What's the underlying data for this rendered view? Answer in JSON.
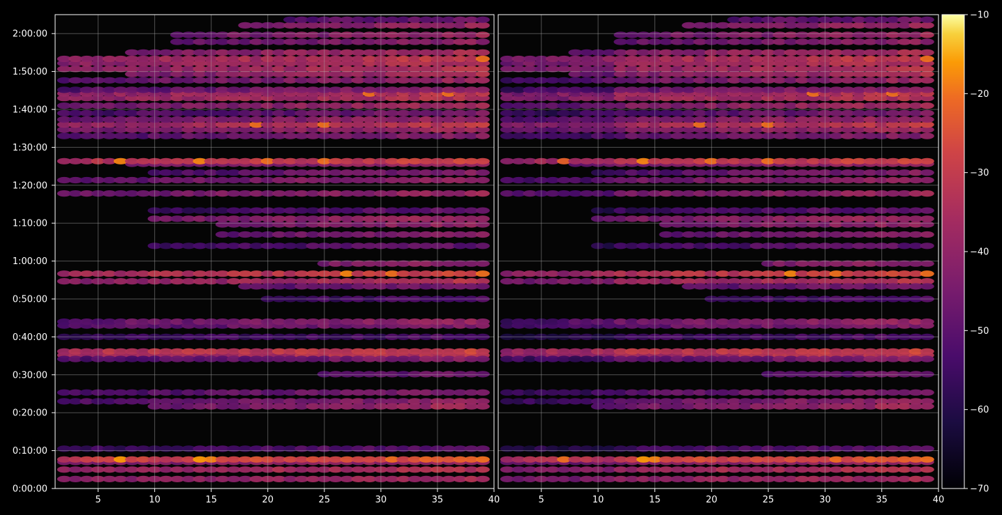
{
  "chart_data": {
    "type": "heatmap",
    "title": "",
    "background": "#000000",
    "colormap": "inferno",
    "grid": true,
    "panels": [
      {
        "name": "",
        "xlim": [
          1.2,
          40
        ],
        "xticks": [
          "5",
          "10",
          "15",
          "20",
          "25",
          "30",
          "35",
          "40"
        ],
        "ylim": [
          0,
          7500
        ],
        "yticks": [
          "0:00:00",
          "0:10:00",
          "0:20:00",
          "0:30:00",
          "0:40:00",
          "0:50:00",
          "1:00:00",
          "1:10:00",
          "1:20:00",
          "1:30:00",
          "1:40:00",
          "1:50:00",
          "2:00:00"
        ]
      },
      {
        "name": "",
        "xlim": [
          1.2,
          40
        ],
        "xticks": [
          "5",
          "10",
          "15",
          "20",
          "25",
          "30",
          "35",
          "40"
        ],
        "ylim": [
          0,
          7500
        ],
        "yticks": []
      }
    ],
    "colorbar": {
      "min": -70,
      "max": -10,
      "ticks": [
        "−10",
        "−20",
        "−30",
        "−40",
        "−50",
        "−60",
        "−70"
      ],
      "tick_values": [
        -10,
        -20,
        -30,
        -40,
        -50,
        -60,
        -70
      ]
    },
    "x_columns": [
      2,
      3,
      4,
      5,
      6,
      7,
      8,
      9,
      10,
      11,
      12,
      13,
      14,
      15,
      16,
      17,
      18,
      19,
      20,
      21,
      22,
      23,
      24,
      25,
      26,
      27,
      28,
      29,
      30,
      31,
      32,
      33,
      34,
      35,
      36,
      37,
      38,
      39
    ],
    "bands": [
      {
        "t": 150,
        "level": -42,
        "trend": 6,
        "start": 2
      },
      {
        "t": 300,
        "level": -40,
        "trend": 8,
        "start": 2
      },
      {
        "t": 420,
        "level": -44,
        "trend": 6,
        "start": 2
      },
      {
        "t": 460,
        "level": -30,
        "trend": 6,
        "start": 2
      },
      {
        "t": 630,
        "level": -56,
        "trend": 6,
        "start": 2
      },
      {
        "t": 1380,
        "level": -52,
        "trend": 12,
        "start": 2
      },
      {
        "t": 1520,
        "level": -54,
        "trend": 12,
        "start": 2
      },
      {
        "t": 1300,
        "level": -50,
        "trend": 14,
        "start": 10
      },
      {
        "t": 2110,
        "level": -38,
        "trend": 6,
        "start": 2
      },
      {
        "t": 2170,
        "level": -34,
        "trend": 6,
        "start": 2
      },
      {
        "t": 2050,
        "level": -52,
        "trend": 10,
        "start": 2
      },
      {
        "t": 1810,
        "level": -58,
        "trend": 12,
        "start": 25
      },
      {
        "t": 2400,
        "level": -58,
        "trend": 6,
        "start": 2
      },
      {
        "t": 2580,
        "level": -52,
        "trend": 10,
        "start": 2
      },
      {
        "t": 2640,
        "level": -50,
        "trend": 12,
        "start": 2
      },
      {
        "t": 3280,
        "level": -42,
        "trend": 10,
        "start": 2
      },
      {
        "t": 3400,
        "level": -36,
        "trend": 8,
        "start": 2
      },
      {
        "t": 3200,
        "level": -56,
        "trend": 12,
        "start": 18
      },
      {
        "t": 3000,
        "level": -60,
        "trend": 8,
        "start": 20
      },
      {
        "t": 3560,
        "level": -52,
        "trend": 12,
        "start": 25
      },
      {
        "t": 3840,
        "level": -58,
        "trend": 10,
        "start": 10
      },
      {
        "t": 4020,
        "level": -54,
        "trend": 14,
        "start": 16
      },
      {
        "t": 4180,
        "level": -52,
        "trend": 14,
        "start": 16
      },
      {
        "t": 4270,
        "level": -48,
        "trend": 12,
        "start": 10
      },
      {
        "t": 4400,
        "level": -58,
        "trend": 10,
        "start": 10
      },
      {
        "t": 4670,
        "level": -48,
        "trend": 10,
        "start": 2
      },
      {
        "t": 4880,
        "level": -50,
        "trend": 12,
        "start": 2
      },
      {
        "t": 5000,
        "level": -56,
        "trend": 14,
        "start": 10
      },
      {
        "t": 5140,
        "level": -48,
        "trend": 10,
        "start": 8
      },
      {
        "t": 5180,
        "level": -34,
        "trend": 6,
        "start": 2
      },
      {
        "t": 5580,
        "level": -52,
        "trend": 10,
        "start": 2
      },
      {
        "t": 5680,
        "level": -46,
        "trend": 10,
        "start": 2
      },
      {
        "t": 5760,
        "level": -40,
        "trend": 10,
        "start": 2
      },
      {
        "t": 5840,
        "level": -48,
        "trend": 10,
        "start": 2
      },
      {
        "t": 5940,
        "level": -54,
        "trend": 10,
        "start": 2
      },
      {
        "t": 6060,
        "level": -46,
        "trend": 10,
        "start": 2
      },
      {
        "t": 6180,
        "level": -40,
        "trend": 8,
        "start": 2
      },
      {
        "t": 6250,
        "level": -40,
        "trend": 8,
        "start": 2
      },
      {
        "t": 6310,
        "level": -52,
        "trend": 12,
        "start": 2
      },
      {
        "t": 6460,
        "level": -50,
        "trend": 12,
        "start": 2
      },
      {
        "t": 6560,
        "level": -46,
        "trend": 12,
        "start": 8
      },
      {
        "t": 6640,
        "level": -42,
        "trend": 10,
        "start": 2
      },
      {
        "t": 6730,
        "level": -42,
        "trend": 10,
        "start": 2
      },
      {
        "t": 6800,
        "level": -40,
        "trend": 10,
        "start": 2
      },
      {
        "t": 6900,
        "level": -46,
        "trend": 12,
        "start": 8
      },
      {
        "t": 7070,
        "level": -52,
        "trend": 12,
        "start": 12
      },
      {
        "t": 7180,
        "level": -50,
        "trend": 12,
        "start": 12
      },
      {
        "t": 7330,
        "level": -50,
        "trend": 12,
        "start": 18
      },
      {
        "t": 7420,
        "level": -58,
        "trend": 12,
        "start": 22
      }
    ],
    "hotspots": [
      {
        "t": 460,
        "x": 7,
        "value": -16
      },
      {
        "t": 460,
        "x": 14,
        "value": -16
      },
      {
        "t": 460,
        "x": 15,
        "value": -18
      },
      {
        "t": 460,
        "x": 39,
        "value": -20
      },
      {
        "t": 460,
        "x": 31,
        "value": -20
      },
      {
        "t": 5180,
        "x": 7,
        "value": -18
      },
      {
        "t": 5180,
        "x": 14,
        "value": -18
      },
      {
        "t": 5180,
        "x": 20,
        "value": -20
      },
      {
        "t": 5180,
        "x": 25,
        "value": -20
      },
      {
        "t": 6250,
        "x": 29,
        "value": -20
      },
      {
        "t": 6250,
        "x": 36,
        "value": -20
      },
      {
        "t": 3400,
        "x": 27,
        "value": -18
      },
      {
        "t": 3400,
        "x": 31,
        "value": -20
      },
      {
        "t": 3400,
        "x": 39,
        "value": -20
      },
      {
        "t": 5760,
        "x": 19,
        "value": -20
      },
      {
        "t": 5760,
        "x": 25,
        "value": -20
      },
      {
        "t": 6800,
        "x": 39,
        "value": -20
      }
    ]
  }
}
